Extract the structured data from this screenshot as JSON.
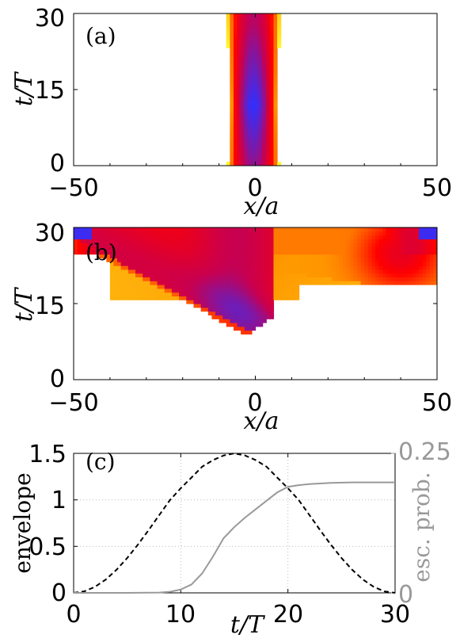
{
  "chart_data": [
    {
      "type": "heatmap",
      "panel_label": "(a)",
      "xlabel": "x/a",
      "ylabel": "t/T",
      "xlim": [
        -50,
        50
      ],
      "ylim": [
        0,
        30
      ],
      "xticks": [
        "−50",
        "0",
        "50"
      ],
      "yticks": [
        "0",
        "15",
        "30"
      ],
      "colormap": [
        "#ffff30",
        "#ff9900",
        "#ff0000",
        "#c80050",
        "#3030ff"
      ],
      "band": {
        "center_x": 0,
        "half_width": 8,
        "peak_t": 12
      }
    },
    {
      "type": "heatmap",
      "panel_label": "(b)",
      "xlabel": "x/a",
      "ylabel": "t/T",
      "xlim": [
        -50,
        50
      ],
      "ylim": [
        0,
        30
      ],
      "xticks": [
        "−50",
        "0",
        "50"
      ],
      "yticks": [
        "0",
        "15",
        "30"
      ],
      "colormap": [
        "#ffff30",
        "#ff9900",
        "#ff0000",
        "#c80050",
        "#3030ff"
      ]
    },
    {
      "type": "line",
      "panel_label": "(c)",
      "xlabel": "t/T",
      "ylabel": "envelope",
      "ylabel_right": "esc. prob.",
      "xlim": [
        0,
        30
      ],
      "ylim": [
        0,
        1.5
      ],
      "ylim_right": [
        0,
        0.25
      ],
      "xticks": [
        "0",
        "10",
        "20",
        "30"
      ],
      "yticks": [
        "0",
        "0.5",
        "1",
        "1.5"
      ],
      "yticks_right": [
        "0",
        "0.25"
      ],
      "grid": true,
      "series": [
        {
          "axis": "left",
          "style": "dashed",
          "color": "#000000",
          "x": [
            0,
            1,
            2,
            3,
            4,
            5,
            6,
            7,
            8,
            9,
            10,
            11,
            12,
            13,
            14,
            15,
            16,
            17,
            18,
            19,
            20,
            21,
            22,
            23,
            24,
            25,
            26,
            27,
            28,
            29,
            30
          ],
          "y": [
            0,
            0.016,
            0.065,
            0.143,
            0.248,
            0.375,
            0.519,
            0.675,
            0.838,
            0.999,
            1.125,
            1.24,
            1.357,
            1.427,
            1.477,
            1.5,
            1.477,
            1.427,
            1.357,
            1.24,
            1.125,
            0.999,
            0.838,
            0.675,
            0.519,
            0.375,
            0.248,
            0.143,
            0.065,
            0.016,
            0
          ]
        },
        {
          "axis": "right",
          "style": "solid",
          "color": "#999999",
          "x": [
            0,
            5,
            8,
            9,
            10,
            11,
            12,
            13,
            14,
            15,
            16,
            17,
            18,
            19,
            20,
            21,
            22,
            24,
            26,
            28,
            30
          ],
          "y": [
            0,
            0,
            0.0005,
            0.002,
            0.006,
            0.015,
            0.035,
            0.065,
            0.098,
            0.118,
            0.135,
            0.15,
            0.165,
            0.18,
            0.19,
            0.193,
            0.195,
            0.197,
            0.198,
            0.198,
            0.198
          ]
        }
      ]
    }
  ]
}
